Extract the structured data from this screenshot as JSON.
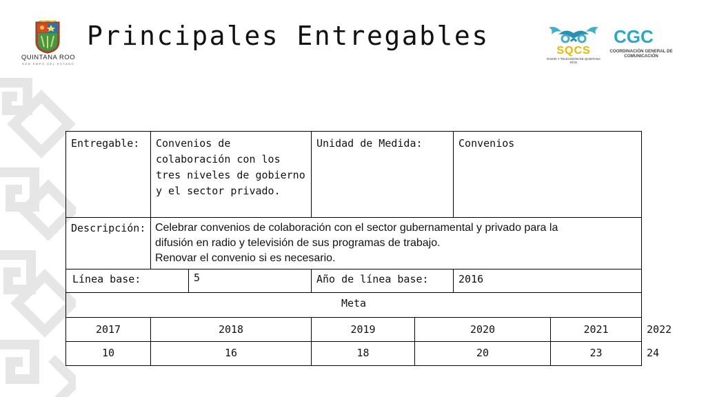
{
  "header": {
    "title": "Principales Entregables",
    "logo_left": {
      "name": "QUINTANA ROO",
      "tagline": "SON EMPO DEL ESTADO"
    },
    "logo_sqcs": {
      "name": "SQCS",
      "subtitle": "RADIO Y TELEVISIÓN DE QUINTANA ROO"
    },
    "logo_cgc": {
      "name": "CGC",
      "subtitle": "COORDINACIÓN GENERAL DE COMUNICACIÓN"
    }
  },
  "colors": {
    "pattern": "#e5e5e5",
    "sqcs_accent": "#e6b800",
    "sqcs_mark": "#3fb2c9",
    "cgc_accent": "#2aa6c9"
  },
  "table": {
    "entregable_label": "Entregable:",
    "entregable_value": "Convenios de colaboración con los tres niveles de gobierno y el sector privado.",
    "unidad_label": "Unidad de Medida:",
    "unidad_value": "Convenios",
    "descripcion_label": "Descripción:",
    "descripcion_lines": [
      "Celebrar convenios de colaboración con el sector gubernamental y privado para la",
      "difusión en radio y televisión de sus programas de trabajo.",
      "Renovar el convenio si es necesario."
    ],
    "linea_base_label": "Línea base:",
    "linea_base_value": "5",
    "anio_base_label": "Año de línea base:",
    "anio_base_value": "2016",
    "meta_label": "Meta",
    "years": [
      "2017",
      "2018",
      "2019",
      "2020",
      "2021",
      "2022"
    ],
    "goals": [
      "10",
      "16",
      "18",
      "20",
      "23",
      "24"
    ]
  }
}
